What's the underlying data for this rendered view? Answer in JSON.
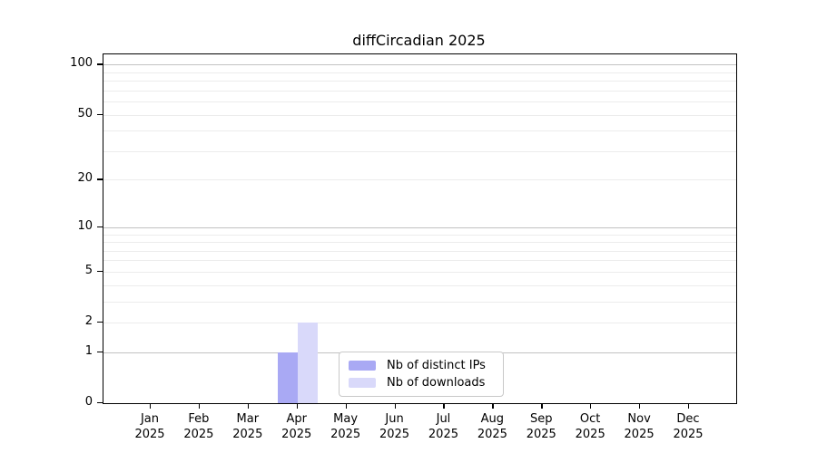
{
  "chart_data": {
    "type": "bar",
    "title": "diffCircadian 2025",
    "categories": [
      "Jan",
      "Feb",
      "Mar",
      "Apr",
      "May",
      "Jun",
      "Jul",
      "Aug",
      "Sep",
      "Oct",
      "Nov",
      "Dec"
    ],
    "year_label": "2025",
    "series": [
      {
        "name": "Nb of distinct IPs",
        "color": "#a9a9f4",
        "values": [
          0,
          0,
          0,
          1,
          0,
          0,
          0,
          0,
          0,
          0,
          0,
          0
        ]
      },
      {
        "name": "Nb of downloads",
        "color": "#d9d9fa",
        "values": [
          0,
          0,
          0,
          2,
          0,
          0,
          0,
          0,
          0,
          0,
          0,
          0
        ]
      }
    ],
    "y_axis": {
      "scale": "log1p",
      "min": 0,
      "max": 115,
      "tick_values": [
        0,
        1,
        2,
        5,
        10,
        20,
        50,
        100
      ],
      "major_grid_values": [
        1,
        10,
        100
      ],
      "minor_grid_values": [
        2,
        3,
        4,
        5,
        6,
        7,
        8,
        9,
        20,
        30,
        40,
        50,
        60,
        70,
        80,
        90
      ]
    },
    "legend_position": "lower center",
    "grid": true
  },
  "colors": {
    "background": "#ffffff",
    "axis": "#000000",
    "grid_major": "#c2c2c2",
    "grid_minor": "#ececec",
    "legend_border": "#c9c9c9"
  }
}
